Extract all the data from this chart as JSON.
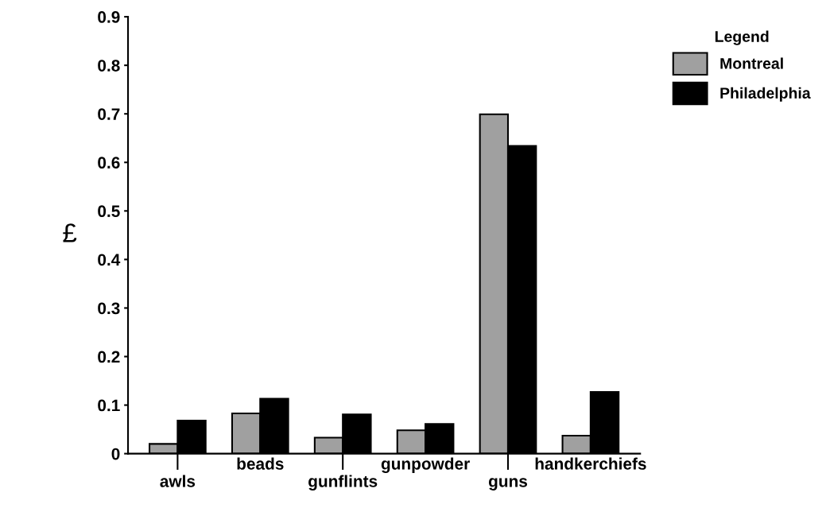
{
  "chart_data": {
    "type": "bar",
    "ylabel": "£",
    "legend_title": "Legend",
    "legend": "top right",
    "categories": [
      "awls",
      "beads",
      "gunflints",
      "gunpowder",
      "guns",
      "handkerchiefs"
    ],
    "series": [
      {
        "name": "Montreal",
        "color": "#a0a0a0",
        "values": [
          0.02,
          0.083,
          0.033,
          0.048,
          0.699,
          0.037
        ]
      },
      {
        "name": "Philadelphia",
        "color": "#000000",
        "values": [
          0.068,
          0.113,
          0.081,
          0.061,
          0.634,
          0.127
        ]
      }
    ],
    "ylim": [
      0,
      0.9
    ],
    "yticks": [
      0,
      0.1,
      0.2,
      0.3,
      0.4,
      0.5,
      0.6,
      0.7,
      0.8,
      0.9
    ],
    "grid": false
  }
}
